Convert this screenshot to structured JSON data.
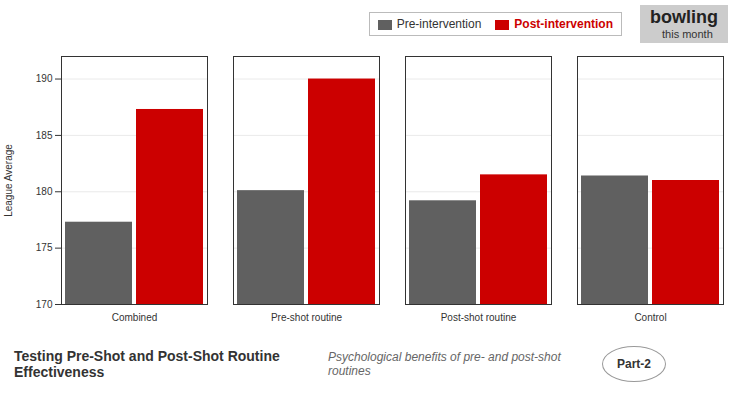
{
  "chart_data": {
    "type": "bar",
    "title": "Testing Pre-Shot and Post-Shot Routine Effectiveness",
    "subtitle": "Psychological benefits of pre- and post-shot routines",
    "annotations": [
      "bowling",
      "this month",
      "Part-2"
    ],
    "categories": [
      "Combined",
      "Pre-shot routine",
      "Post-shot routine",
      "Control"
    ],
    "series": [
      {
        "name": "Pre-intervention",
        "color": "#606060",
        "values": [
          177.3,
          180.1,
          179.2,
          181.4
        ]
      },
      {
        "name": "Post-intervention",
        "color": "#cc0000",
        "values": [
          187.3,
          190.0,
          181.5,
          181.0
        ]
      }
    ],
    "ylabel": "League Average",
    "ylim": [
      170,
      192
    ],
    "yticks": [
      170,
      175,
      180,
      185,
      190
    ],
    "grid": true,
    "legend": "upper right"
  }
}
